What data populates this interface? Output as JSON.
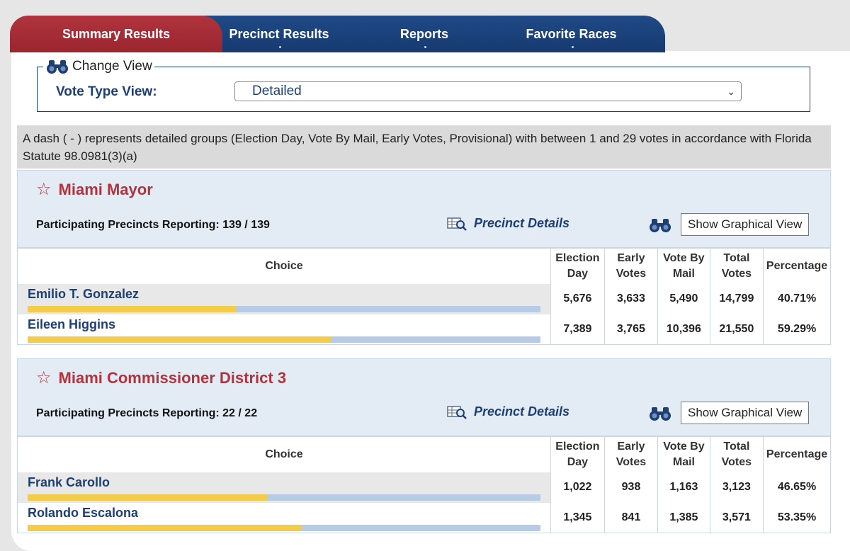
{
  "tabs": [
    {
      "label": "Summary Results",
      "active": true
    },
    {
      "label": "Precinct Results",
      "active": false
    },
    {
      "label": "Reports",
      "active": false
    },
    {
      "label": "Favorite Races",
      "active": false
    }
  ],
  "change_view": {
    "legend": "Change View",
    "vote_type_label": "Vote Type View:",
    "selected": "Detailed"
  },
  "notice": "A dash ( - ) represents detailed groups (Election Day, Vote By Mail, Early Votes, Provisional) with between 1 and 29 votes in accordance with Florida Statute 98.0981(3)(a)",
  "columns": {
    "choice": "Choice",
    "election_day": "Election Day",
    "early_votes": "Early Votes",
    "vote_by_mail": "Vote By Mail",
    "total_votes": "Total Votes",
    "percentage": "Percentage"
  },
  "races": [
    {
      "title": "Miami Mayor",
      "reporting": "Participating Precincts Reporting: 139 / 139",
      "precinct_details": "Precinct Details",
      "graph_button": "Show Graphical View",
      "candidates": [
        {
          "name": "Emilio T. Gonzalez",
          "election_day": "5,676",
          "early_votes": "3,633",
          "vote_by_mail": "5,490",
          "total": "14,799",
          "percentage": "40.71%",
          "share": 0.4071
        },
        {
          "name": "Eileen Higgins",
          "election_day": "7,389",
          "early_votes": "3,765",
          "vote_by_mail": "10,396",
          "total": "21,550",
          "percentage": "59.29%",
          "share": 0.5929
        }
      ]
    },
    {
      "title": "Miami Commissioner District 3",
      "reporting": "Participating Precincts Reporting: 22 / 22",
      "precinct_details": "Precinct Details",
      "graph_button": "Show Graphical View",
      "candidates": [
        {
          "name": "Frank Carollo",
          "election_day": "1,022",
          "early_votes": "938",
          "vote_by_mail": "1,163",
          "total": "3,123",
          "percentage": "46.65%",
          "share": 0.4665
        },
        {
          "name": "Rolando Escalona",
          "election_day": "1,345",
          "early_votes": "841",
          "vote_by_mail": "1,385",
          "total": "3,571",
          "percentage": "53.35%",
          "share": 0.5335
        }
      ]
    }
  ],
  "colors": {
    "active_tab": "#b0333d",
    "inactive_tab": "#1f4a86",
    "bar_fill": "#f3cd4a",
    "bar_track": "#b7cbe6",
    "race_title": "#b0333d"
  },
  "icons": {
    "binoculars": "binoculars-icon",
    "precinct_details": "magnifier-table-icon",
    "favorite": "star-outline-icon"
  }
}
